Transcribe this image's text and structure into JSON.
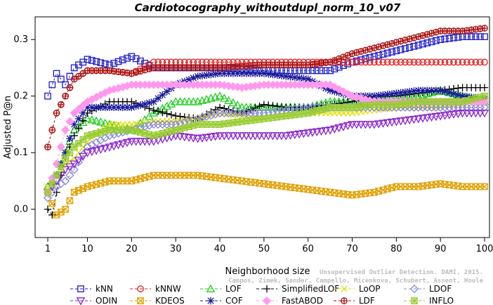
{
  "chart_data": {
    "type": "line",
    "title": "Cardiotocography_withoutdupl_norm_10_v07",
    "xlabel": "Neighborhood size",
    "ylabel": "Adjusted P@n",
    "xlim": [
      1,
      100
    ],
    "ylim": [
      -0.05,
      0.34
    ],
    "xticks": [
      1,
      10,
      20,
      30,
      40,
      50,
      60,
      70,
      80,
      90,
      100
    ],
    "yticks": [
      0.0,
      0.1,
      0.2,
      0.3
    ],
    "ytick_labels": [
      "0.0",
      "0.1",
      "0.2",
      "0.3"
    ],
    "grid": false,
    "legend_position": "bottom",
    "watermark": [
      "Unsupervised Outlier Detection. DAMI, 2015.",
      "Campos, Zimek, Sander, Campello, Micenkova, Schubert, Assent, Houle"
    ],
    "series": [
      {
        "name": "kNN",
        "color": "#1a1acc",
        "marker": "square",
        "x": [
          1,
          3,
          5,
          7,
          10,
          15,
          20,
          25,
          30,
          40,
          50,
          60,
          65,
          70,
          80,
          85,
          90,
          95,
          100
        ],
        "y": [
          0.2,
          0.24,
          0.22,
          0.25,
          0.265,
          0.255,
          0.27,
          0.25,
          0.25,
          0.25,
          0.245,
          0.245,
          0.245,
          0.26,
          0.28,
          0.29,
          0.3,
          0.305,
          0.305
        ]
      },
      {
        "name": "kNNW",
        "color": "#dd2020",
        "marker": "circle",
        "x": [
          1,
          3,
          5,
          7,
          10,
          15,
          20,
          25,
          30,
          40,
          50,
          60,
          70,
          80,
          90,
          100
        ],
        "y": [
          0.11,
          0.17,
          0.2,
          0.23,
          0.245,
          0.245,
          0.24,
          0.26,
          0.26,
          0.26,
          0.26,
          0.26,
          0.26,
          0.26,
          0.26,
          0.26
        ]
      },
      {
        "name": "LOF",
        "color": "#22cc22",
        "marker": "triangle-up",
        "x": [
          1,
          3,
          5,
          7,
          10,
          15,
          20,
          25,
          30,
          35,
          40,
          45,
          50,
          55,
          60,
          65,
          70,
          75,
          80,
          85,
          90,
          95,
          100
        ],
        "y": [
          0.04,
          0.06,
          0.1,
          0.14,
          0.16,
          0.15,
          0.14,
          0.17,
          0.19,
          0.19,
          0.2,
          0.18,
          0.18,
          0.18,
          0.18,
          0.19,
          0.19,
          0.19,
          0.2,
          0.2,
          0.21,
          0.2,
          0.19
        ]
      },
      {
        "name": "SimplifiedLOF",
        "color": "#000000",
        "marker": "plus",
        "x": [
          1,
          2,
          3,
          5,
          7,
          10,
          15,
          20,
          25,
          30,
          35,
          40,
          45,
          50,
          55,
          60,
          65,
          70,
          75,
          80,
          85,
          90,
          95,
          100
        ],
        "y": [
          0.0,
          -0.01,
          0.03,
          0.09,
          0.13,
          0.17,
          0.19,
          0.19,
          0.175,
          0.165,
          0.16,
          0.18,
          0.17,
          0.185,
          0.18,
          0.18,
          0.185,
          0.19,
          0.2,
          0.2,
          0.205,
          0.21,
          0.215,
          0.215
        ]
      },
      {
        "name": "LoOP",
        "color": "#e0e000",
        "marker": "x",
        "x": [
          1,
          3,
          5,
          7,
          10,
          15,
          20,
          25,
          30,
          35,
          40,
          50,
          60,
          70,
          80,
          90,
          100
        ],
        "y": [
          0.04,
          0.06,
          0.08,
          0.09,
          0.12,
          0.15,
          0.15,
          0.155,
          0.155,
          0.16,
          0.17,
          0.16,
          0.17,
          0.17,
          0.18,
          0.18,
          0.19
        ]
      },
      {
        "name": "LDOF",
        "color": "#8888dd",
        "marker": "diamond",
        "x": [
          1,
          3,
          5,
          7,
          10,
          15,
          20,
          25,
          30,
          40,
          50,
          60,
          70,
          80,
          90,
          100
        ],
        "y": [
          0.02,
          0.04,
          0.05,
          0.07,
          0.11,
          0.13,
          0.14,
          0.15,
          0.15,
          0.17,
          0.17,
          0.18,
          0.18,
          0.18,
          0.18,
          0.18
        ]
      },
      {
        "name": "ODIN",
        "color": "#8822cc",
        "marker": "triangle-down",
        "x": [
          1,
          3,
          5,
          7,
          10,
          15,
          20,
          25,
          30,
          35,
          40,
          45,
          50,
          55,
          60,
          65,
          70,
          75,
          80,
          85,
          90,
          95,
          100
        ],
        "y": [
          0.03,
          0.05,
          0.07,
          0.08,
          0.1,
          0.11,
          0.12,
          0.12,
          0.13,
          0.125,
          0.13,
          0.13,
          0.13,
          0.13,
          0.135,
          0.14,
          0.15,
          0.15,
          0.155,
          0.16,
          0.165,
          0.17,
          0.17
        ]
      },
      {
        "name": "KDEOS",
        "color": "#e0a000",
        "marker": "square-x",
        "x": [
          1,
          3,
          5,
          7,
          10,
          15,
          20,
          25,
          30,
          35,
          40,
          45,
          50,
          55,
          60,
          65,
          70,
          75,
          80,
          85,
          90,
          95,
          100
        ],
        "y": [
          0.03,
          -0.01,
          0.0,
          0.03,
          0.04,
          0.05,
          0.05,
          0.06,
          0.06,
          0.06,
          0.055,
          0.05,
          0.045,
          0.04,
          0.035,
          0.03,
          0.025,
          0.03,
          0.04,
          0.04,
          0.045,
          0.04,
          0.04
        ]
      },
      {
        "name": "COF",
        "color": "#1a1a99",
        "marker": "asterisk",
        "x": [
          1,
          3,
          5,
          7,
          10,
          15,
          20,
          25,
          30,
          35,
          40,
          45,
          50,
          55,
          60,
          65,
          70,
          75,
          80,
          85,
          90,
          95,
          100
        ],
        "y": [
          0.03,
          0.06,
          0.1,
          0.15,
          0.18,
          0.18,
          0.18,
          0.19,
          0.22,
          0.235,
          0.24,
          0.24,
          0.24,
          0.235,
          0.23,
          0.21,
          0.2,
          0.2,
          0.205,
          0.21,
          0.21,
          0.2,
          0.195
        ]
      },
      {
        "name": "FastABOD",
        "color": "#ff99ee",
        "marker": "diamond-filled",
        "x": [
          1,
          3,
          5,
          7,
          10,
          15,
          20,
          25,
          30,
          35,
          40,
          45,
          50,
          55,
          60,
          65,
          70,
          75,
          80,
          85,
          90,
          95,
          100
        ],
        "y": [
          0.03,
          0.08,
          0.14,
          0.17,
          0.19,
          0.21,
          0.22,
          0.22,
          0.22,
          0.22,
          0.22,
          0.215,
          0.22,
          0.22,
          0.22,
          0.22,
          0.2,
          0.19,
          0.19,
          0.19,
          0.19,
          0.19,
          0.19
        ]
      },
      {
        "name": "LDF",
        "color": "#aa1111",
        "marker": "circle-plus",
        "x": [
          1,
          3,
          5,
          7,
          10,
          15,
          20,
          25,
          30,
          40,
          50,
          60,
          65,
          70,
          75,
          80,
          85,
          90,
          95,
          100
        ],
        "y": [
          0.11,
          0.17,
          0.2,
          0.23,
          0.245,
          0.245,
          0.24,
          0.25,
          0.25,
          0.25,
          0.255,
          0.255,
          0.26,
          0.275,
          0.285,
          0.295,
          0.305,
          0.315,
          0.315,
          0.32
        ]
      },
      {
        "name": "INFLO",
        "color": "#99cc33",
        "marker": "square-star",
        "x": [
          1,
          3,
          5,
          7,
          10,
          15,
          20,
          25,
          30,
          35,
          40,
          45,
          50,
          55,
          60,
          65,
          70,
          75,
          80,
          85,
          90,
          95,
          100
        ],
        "y": [
          0.03,
          0.06,
          0.09,
          0.11,
          0.13,
          0.14,
          0.14,
          0.13,
          0.14,
          0.15,
          0.15,
          0.155,
          0.16,
          0.165,
          0.17,
          0.18,
          0.18,
          0.185,
          0.185,
          0.19,
          0.19,
          0.19,
          0.2
        ]
      }
    ]
  }
}
